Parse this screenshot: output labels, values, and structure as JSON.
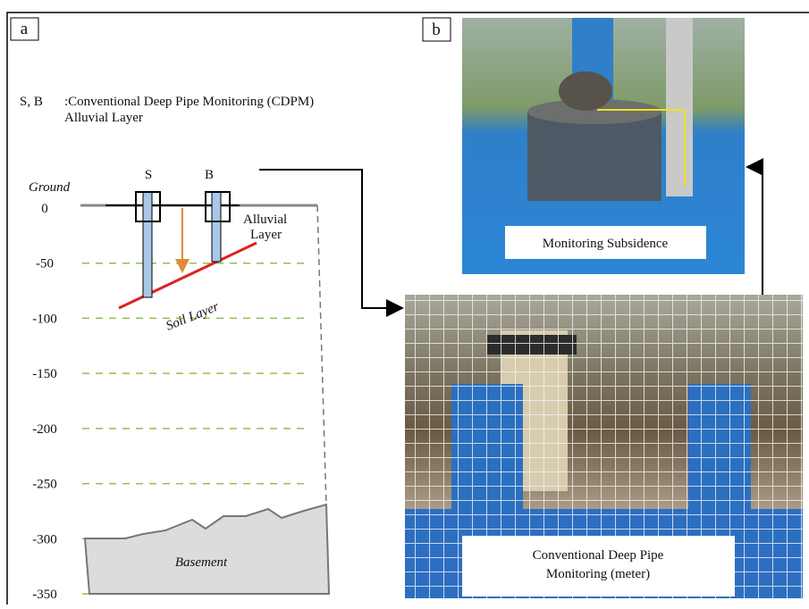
{
  "panel_a": {
    "label": "a",
    "legend_key": "S, B",
    "legend_text": ":Conventional Deep Pipe Monitoring (CDPM)",
    "legend_text_2": "Alluvial Layer",
    "ground_label": "Ground",
    "pipes": [
      "S",
      "B"
    ],
    "alluvial_label": [
      "Alluvial",
      "Layer"
    ],
    "soil_label": "Soil Layer",
    "basement_label": "Basement",
    "depth_ticks": [
      0,
      -50,
      -100,
      -150,
      -200,
      -250,
      -300,
      -350
    ]
  },
  "panel_b": {
    "label": "b",
    "photo_top_caption": "Monitoring Subsidence",
    "photo_bottom_caption": [
      "Conventional Deep Pipe",
      "Monitoring (meter)"
    ]
  }
}
